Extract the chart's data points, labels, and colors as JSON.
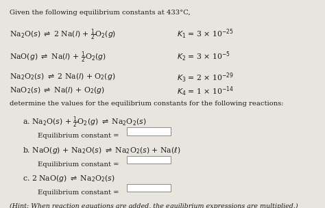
{
  "bg_color_top": "#ccc6bc",
  "bg_color": "#e8e4de",
  "title": "Given the following equilibrium constants at 433°C,",
  "determine": "determine the values for the equilibrium constants for the following reactions:",
  "eq_const_label": "Equilibrium constant =",
  "hint": "(Hint: When reaction equations are added, the equilibrium expressions are multiplied.)",
  "text_color": "#1a1a1a",
  "box_color": "#ffffff",
  "box_edge": "#888888",
  "font_size_title": 7.2,
  "font_size_eq": 7.8,
  "font_size_sub": 7.2,
  "font_size_hint": 6.8
}
